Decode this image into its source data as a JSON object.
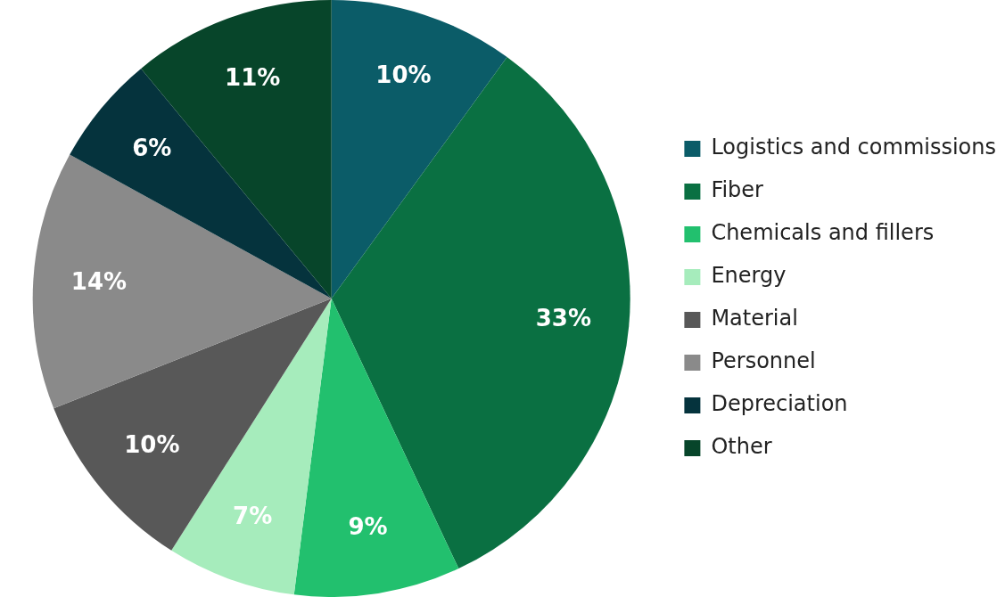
{
  "chart_data": {
    "type": "pie",
    "categories": [
      "Logistics and commissions",
      "Fiber",
      "Chemicals and fillers",
      "Energy",
      "Material",
      "Personnel",
      "Depreciation",
      "Other"
    ],
    "values": [
      10,
      33,
      9,
      7,
      10,
      14,
      6,
      11
    ],
    "colors": [
      "#0b5c68",
      "#0a7042",
      "#22c06e",
      "#a6ecbc",
      "#585858",
      "#8a8a8a",
      "#05333d",
      "#07452a"
    ],
    "value_labels": [
      "10%",
      "33%",
      "9%",
      "7%",
      "10%",
      "14%",
      "6%",
      "11%"
    ],
    "legend": "right"
  }
}
